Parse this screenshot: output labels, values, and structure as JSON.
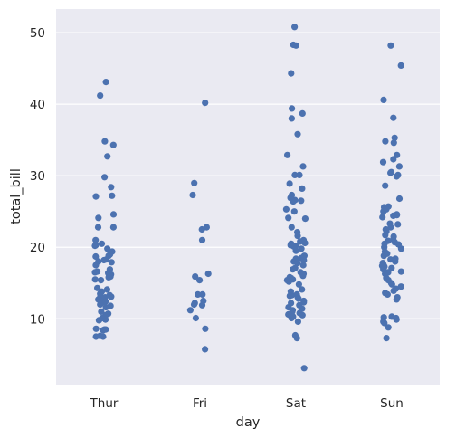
{
  "chart_data": {
    "type": "scatter",
    "subtype": "strip",
    "title": "",
    "xlabel": "day",
    "ylabel": "total_bill",
    "categories": [
      "Thur",
      "Fri",
      "Sat",
      "Sun"
    ],
    "ylim": [
      0.8,
      53.3
    ],
    "yticks": [
      10,
      20,
      30,
      40,
      50
    ],
    "grid": true,
    "colors": {
      "background": "#eaeaf2",
      "grid": "#ffffff",
      "point": "#4c72b0",
      "text": "#262626"
    },
    "series": [
      {
        "category": "Thur",
        "values": [
          43.1,
          41.2,
          34.8,
          34.3,
          32.7,
          29.8,
          28.4,
          27.2,
          27.1,
          24.6,
          24.1,
          22.8,
          22.8,
          21.0,
          20.5,
          20.2,
          20.3,
          19.8,
          19.4,
          19.0,
          18.8,
          18.7,
          18.3,
          18.2,
          18.0,
          17.9,
          17.5,
          16.9,
          16.6,
          16.5,
          16.4,
          16.3,
          16.2,
          16.0,
          15.9,
          15.8,
          15.5,
          15.4,
          14.3,
          14.1,
          13.8,
          13.5,
          13.3,
          13.2,
          13.1,
          13.0,
          12.7,
          12.5,
          12.4,
          12.3,
          12.0,
          11.8,
          11.6,
          11.0,
          10.7,
          10.5,
          10.1,
          9.9,
          9.8,
          8.6,
          8.5,
          8.5,
          8.4,
          7.6,
          7.5,
          7.5
        ]
      },
      {
        "category": "Fri",
        "values": [
          40.2,
          28.97,
          27.3,
          22.8,
          22.5,
          21.0,
          16.3,
          15.9,
          15.4,
          13.4,
          13.4,
          12.5,
          12.2,
          12.0,
          11.9,
          11.2,
          10.1,
          8.6,
          5.75
        ]
      },
      {
        "category": "Sat",
        "values": [
          50.8,
          48.3,
          48.2,
          44.3,
          39.4,
          38.7,
          38.0,
          35.8,
          32.9,
          31.3,
          30.1,
          30.1,
          28.9,
          28.2,
          27.3,
          26.9,
          26.6,
          26.5,
          26.4,
          25.3,
          25.0,
          24.1,
          24.0,
          22.8,
          22.1,
          21.6,
          21.0,
          20.8,
          20.6,
          20.5,
          20.3,
          20.2,
          20.1,
          19.8,
          19.5,
          18.8,
          18.5,
          18.4,
          18.2,
          18.0,
          17.8,
          17.5,
          17.1,
          16.9,
          16.5,
          16.3,
          16.0,
          15.8,
          15.7,
          15.5,
          15.4,
          15.2,
          14.8,
          14.1,
          13.8,
          13.4,
          13.3,
          13.2,
          13.0,
          12.8,
          12.5,
          12.3,
          12.2,
          11.9,
          11.6,
          11.4,
          11.2,
          11.0,
          10.8,
          10.6,
          10.5,
          10.3,
          10.1,
          9.6,
          7.7,
          7.3,
          3.1
        ]
      },
      {
        "category": "Sun",
        "values": [
          48.2,
          45.4,
          40.6,
          38.1,
          35.3,
          34.8,
          34.6,
          32.9,
          32.3,
          31.9,
          31.3,
          30.5,
          30.4,
          30.1,
          29.9,
          28.6,
          26.8,
          25.7,
          25.6,
          25.3,
          25.0,
          24.6,
          24.5,
          24.4,
          24.2,
          23.3,
          23.2,
          22.8,
          22.5,
          22.2,
          21.7,
          21.5,
          21.1,
          20.9,
          20.7,
          20.5,
          20.4,
          20.0,
          19.8,
          19.4,
          19.1,
          18.8,
          18.4,
          18.3,
          18.0,
          17.8,
          17.6,
          17.4,
          17.3,
          17.1,
          16.9,
          16.6,
          16.5,
          16.3,
          15.7,
          15.4,
          15.0,
          14.8,
          14.5,
          14.2,
          13.9,
          13.6,
          13.4,
          13.0,
          12.7,
          10.3,
          10.2,
          10.1,
          9.9,
          9.6,
          9.4,
          8.8,
          7.3
        ]
      }
    ]
  }
}
